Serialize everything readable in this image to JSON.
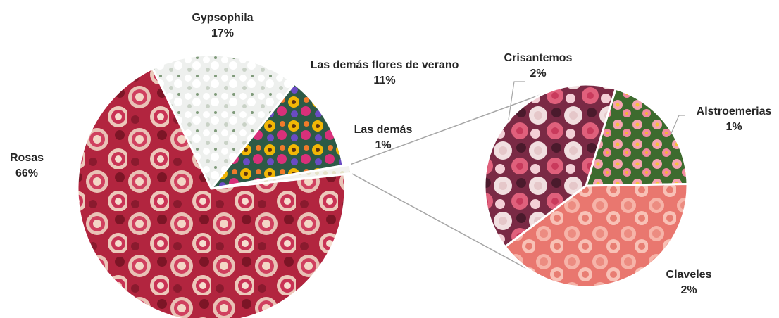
{
  "chart_data": {
    "type": "pie",
    "main_pie": {
      "slices": [
        {
          "label": "Gypsophila",
          "value": 17,
          "value_label": "17%",
          "fill": "gypsophila"
        },
        {
          "label": "Las demás flores de verano",
          "value": 11,
          "value_label": "11%",
          "fill": "summer"
        },
        {
          "label": "Las demás",
          "value": 1,
          "value_label": "1%",
          "fill": "other",
          "exploded": true
        },
        {
          "label": "Rosas",
          "value": 66,
          "value_label": "66%",
          "fill": "roses"
        }
      ]
    },
    "secondary_pie": {
      "slices": [
        {
          "label": "Alstroemerias",
          "value": 1,
          "value_label": "1%",
          "fill": "alstro"
        },
        {
          "label": "Claveles",
          "value": 2,
          "value_label": "2%",
          "fill": "carnation"
        },
        {
          "label": "Crisantemos",
          "value": 2,
          "value_label": "2%",
          "fill": "chrysanthemum"
        }
      ]
    },
    "legend": "none",
    "colors": {
      "leader_line": "#a6a6a6",
      "label_text": "#262626",
      "slice_border": "#ffffff"
    }
  }
}
